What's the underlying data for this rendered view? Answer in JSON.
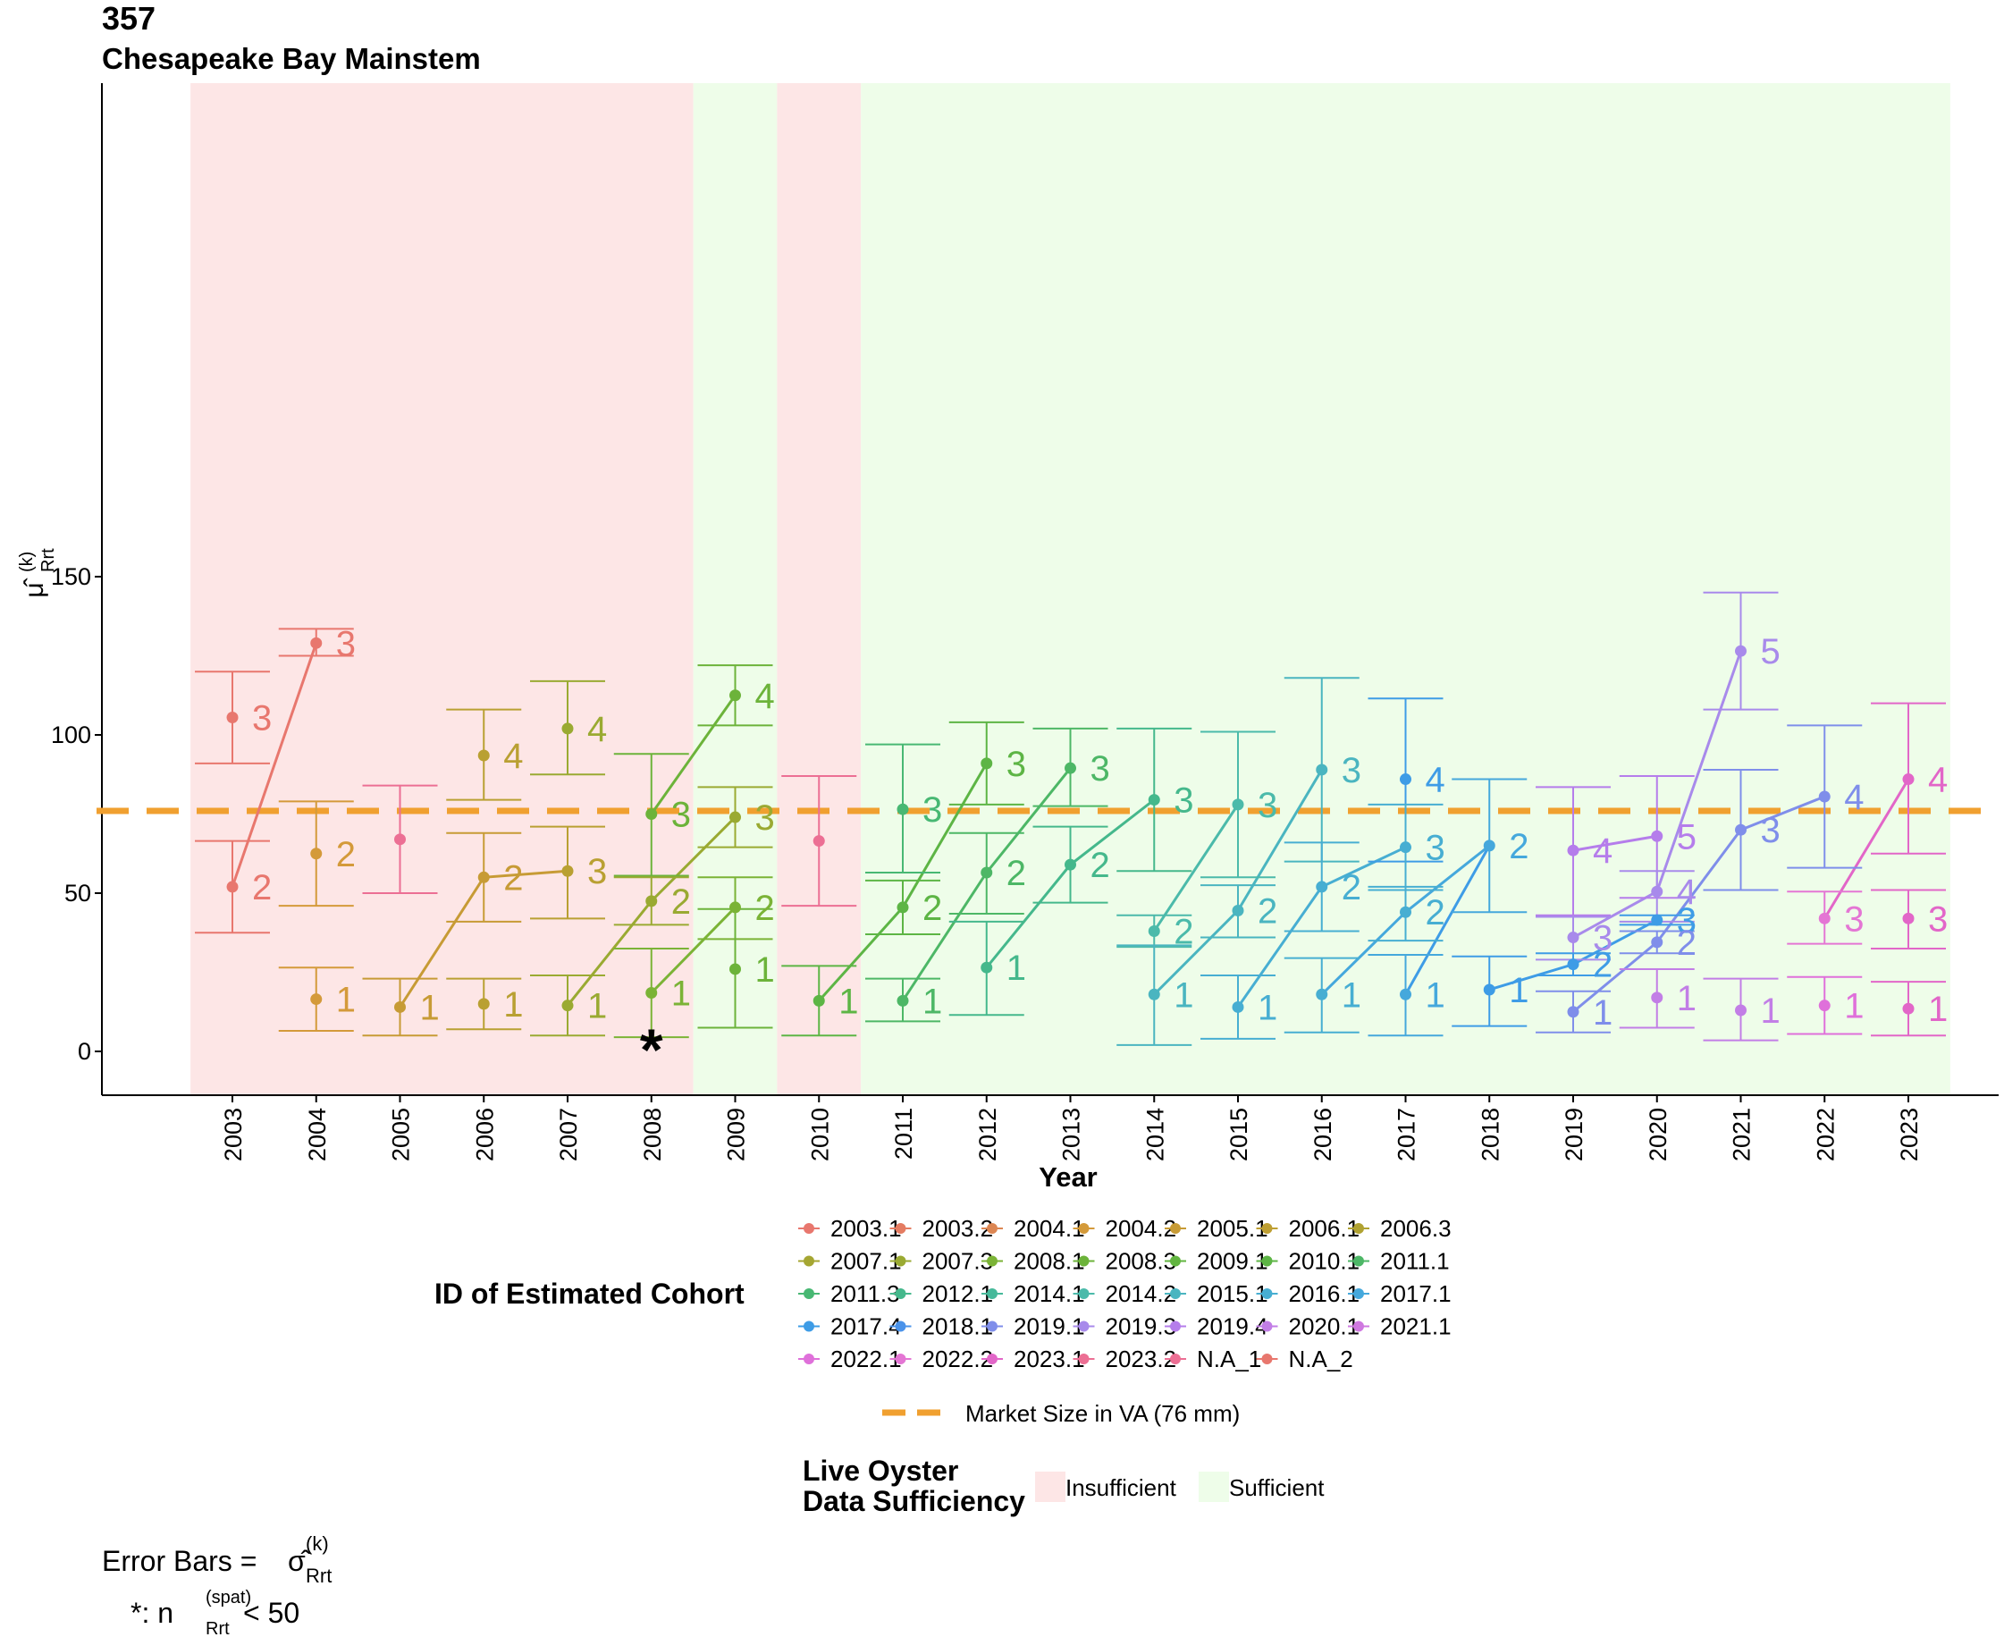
{
  "title": {
    "number": "357",
    "name": "Chesapeake Bay Mainstem"
  },
  "chart_data": {
    "type": "scatter",
    "xlabel": "Year",
    "ylabel_symbol": "μ̂",
    "ylabel_sup": "(k)",
    "ylabel_sub": "Rrt",
    "ylim": [
      -7,
      152
    ],
    "yticks": [
      0,
      50,
      100,
      150
    ],
    "years": [
      2003,
      2004,
      2005,
      2006,
      2007,
      2008,
      2009,
      2010,
      2011,
      2012,
      2013,
      2014,
      2015,
      2016,
      2017,
      2018,
      2019,
      2020,
      2021,
      2022,
      2023
    ],
    "grid": false,
    "market_size": {
      "value": 76,
      "color": "#F0A030",
      "label": "Market Size in VA (76 mm)"
    },
    "sufficiency": [
      {
        "from": 2002.5,
        "to": 2008.5,
        "status": "Insufficient"
      },
      {
        "from": 2008.5,
        "to": 2009.5,
        "status": "Sufficient"
      },
      {
        "from": 2009.5,
        "to": 2010.5,
        "status": "Insufficient"
      },
      {
        "from": 2010.5,
        "to": 2023.5,
        "status": "Sufficient"
      }
    ],
    "sufficiency_colors": {
      "Insufficient": "#FDE6E6",
      "Sufficient": "#EEFDE9"
    },
    "points": [
      {
        "year": 2003,
        "y": 105.5,
        "lo": 91,
        "hi": 120,
        "label": "3",
        "color": "#E8776E"
      },
      {
        "year": 2003,
        "y": 52,
        "lo": 37.5,
        "hi": 66.5,
        "label": "2",
        "color": "#E8776E"
      },
      {
        "year": 2004,
        "y": 129,
        "lo": 125,
        "hi": 133.5,
        "label": "3",
        "color": "#E8776E"
      },
      {
        "year": 2004,
        "y": 62.5,
        "lo": 46,
        "hi": 79,
        "label": "2",
        "color": "#D49A3A"
      },
      {
        "year": 2004,
        "y": 16.5,
        "lo": 6.5,
        "hi": 26.5,
        "label": "1",
        "color": "#D49A3A"
      },
      {
        "year": 2005,
        "y": 67,
        "lo": 50,
        "hi": 84,
        "label": "",
        "color": "#EC6F94"
      },
      {
        "year": 2005,
        "y": 14,
        "lo": 5,
        "hi": 23,
        "label": "1",
        "color": "#C79B35"
      },
      {
        "year": 2006,
        "y": 93.5,
        "lo": 79.5,
        "hi": 108,
        "label": "4",
        "color": "#B9A032"
      },
      {
        "year": 2006,
        "y": 55,
        "lo": 41,
        "hi": 69,
        "label": "2",
        "color": "#C79B35"
      },
      {
        "year": 2006,
        "y": 15,
        "lo": 7,
        "hi": 23,
        "label": "1",
        "color": "#B9A032"
      },
      {
        "year": 2007,
        "y": 102,
        "lo": 87.5,
        "hi": 117,
        "label": "4",
        "color": "#9AAA32"
      },
      {
        "year": 2007,
        "y": 57,
        "lo": 42,
        "hi": 71,
        "label": "3",
        "color": "#B9A032"
      },
      {
        "year": 2007,
        "y": 14.5,
        "lo": 5,
        "hi": 24,
        "label": "1",
        "color": "#9AAA32"
      },
      {
        "year": 2008,
        "y": 75,
        "lo": 55.5,
        "hi": 94,
        "label": "3",
        "color": "#6CB33A"
      },
      {
        "year": 2008,
        "y": 47.5,
        "lo": 40,
        "hi": 55,
        "label": "2",
        "color": "#9AAA32"
      },
      {
        "year": 2008,
        "y": 18.5,
        "lo": 4.5,
        "hi": 32.5,
        "label": "1",
        "color": "#7BB336"
      },
      {
        "year": 2009,
        "y": 112.5,
        "lo": 103,
        "hi": 122,
        "label": "4",
        "color": "#6CB33A"
      },
      {
        "year": 2009,
        "y": 74,
        "lo": 64.5,
        "hi": 83.5,
        "label": "3",
        "color": "#9AAA32"
      },
      {
        "year": 2009,
        "y": 45.5,
        "lo": 35.5,
        "hi": 55,
        "label": "2",
        "color": "#7BB336"
      },
      {
        "year": 2009,
        "y": 26,
        "lo": 7.5,
        "hi": 45,
        "label": "1",
        "color": "#6CB33A"
      },
      {
        "year": 2010,
        "y": 66.5,
        "lo": 46,
        "hi": 87,
        "label": "",
        "color": "#EC6F94"
      },
      {
        "year": 2010,
        "y": 16,
        "lo": 5,
        "hi": 27,
        "label": "1",
        "color": "#5DB545"
      },
      {
        "year": 2011,
        "y": 76.5,
        "lo": 56.5,
        "hi": 97,
        "label": "3",
        "color": "#48B873"
      },
      {
        "year": 2011,
        "y": 45.5,
        "lo": 37,
        "hi": 54,
        "label": "2",
        "color": "#5DB545"
      },
      {
        "year": 2011,
        "y": 16,
        "lo": 9.5,
        "hi": 23,
        "label": "1",
        "color": "#4DB766"
      },
      {
        "year": 2012,
        "y": 91,
        "lo": 78,
        "hi": 104,
        "label": "3",
        "color": "#5DB545"
      },
      {
        "year": 2012,
        "y": 56.5,
        "lo": 43.5,
        "hi": 69,
        "label": "2",
        "color": "#4DB766"
      },
      {
        "year": 2012,
        "y": 26.5,
        "lo": 11.5,
        "hi": 41,
        "label": "1",
        "color": "#45B88C"
      },
      {
        "year": 2013,
        "y": 89.5,
        "lo": 77.5,
        "hi": 102,
        "label": "3",
        "color": "#4DB766"
      },
      {
        "year": 2013,
        "y": 59,
        "lo": 47,
        "hi": 71,
        "label": "2",
        "color": "#45B88C"
      },
      {
        "year": 2014,
        "y": 79.5,
        "lo": 57,
        "hi": 102,
        "label": "3",
        "color": "#45B88C"
      },
      {
        "year": 2014,
        "y": 38,
        "lo": 33,
        "hi": 43,
        "label": "2",
        "color": "#4BBAAA"
      },
      {
        "year": 2014,
        "y": 18,
        "lo": 2,
        "hi": 33.5,
        "label": "1",
        "color": "#4AB5C0"
      },
      {
        "year": 2015,
        "y": 78,
        "lo": 55,
        "hi": 101,
        "label": "3",
        "color": "#4BBAAA"
      },
      {
        "year": 2015,
        "y": 44.5,
        "lo": 36,
        "hi": 52.5,
        "label": "2",
        "color": "#4AB5C0"
      },
      {
        "year": 2015,
        "y": 14,
        "lo": 4,
        "hi": 24,
        "label": "1",
        "color": "#47AED2"
      },
      {
        "year": 2016,
        "y": 89,
        "lo": 60,
        "hi": 118,
        "label": "3",
        "color": "#4AB5C0"
      },
      {
        "year": 2016,
        "y": 52,
        "lo": 38,
        "hi": 66,
        "label": "2",
        "color": "#47AED2"
      },
      {
        "year": 2016,
        "y": 18,
        "lo": 6,
        "hi": 29.5,
        "label": "1",
        "color": "#47AED2"
      },
      {
        "year": 2017,
        "y": 86,
        "lo": 60,
        "hi": 111.5,
        "label": "4",
        "color": "#3E9CE6"
      },
      {
        "year": 2017,
        "y": 64.5,
        "lo": 51,
        "hi": 78,
        "label": "3",
        "color": "#47AED2"
      },
      {
        "year": 2017,
        "y": 44,
        "lo": 35,
        "hi": 52,
        "label": "2",
        "color": "#47AED2"
      },
      {
        "year": 2017,
        "y": 18,
        "lo": 5,
        "hi": 30.5,
        "label": "1",
        "color": "#45A8DC"
      },
      {
        "year": 2018,
        "y": 65,
        "lo": 44,
        "hi": 86,
        "label": "2",
        "color": "#45A8DC"
      },
      {
        "year": 2018,
        "y": 19.5,
        "lo": 8,
        "hi": 30,
        "label": "1",
        "color": "#3E9CE6"
      },
      {
        "year": 2019,
        "y": 63.5,
        "lo": 43,
        "hi": 83.5,
        "label": "4",
        "color": "#B57DEB"
      },
      {
        "year": 2019,
        "y": 36,
        "lo": 29,
        "hi": 42.5,
        "label": "3",
        "color": "#A88AEB"
      },
      {
        "year": 2019,
        "y": 27.5,
        "lo": 24,
        "hi": 31,
        "label": "2",
        "color": "#3E9CE6"
      },
      {
        "year": 2019,
        "y": 12.5,
        "lo": 6,
        "hi": 19,
        "label": "1",
        "color": "#7F8EEA"
      },
      {
        "year": 2020,
        "y": 68,
        "lo": 48.5,
        "hi": 87,
        "label": "5",
        "color": "#B57DEB"
      },
      {
        "year": 2020,
        "y": 50.5,
        "lo": 41,
        "hi": 57,
        "label": "4",
        "color": "#A88AEB"
      },
      {
        "year": 2020,
        "y": 41.5,
        "lo": 40,
        "hi": 43,
        "label": "3",
        "color": "#3E9CE6"
      },
      {
        "year": 2020,
        "y": 34.5,
        "lo": 31,
        "hi": 38,
        "label": "2",
        "color": "#7F8EEA"
      },
      {
        "year": 2020,
        "y": 17,
        "lo": 7.5,
        "hi": 26,
        "label": "1",
        "color": "#C27EE6"
      },
      {
        "year": 2021,
        "y": 126.5,
        "lo": 108,
        "hi": 145,
        "label": "5",
        "color": "#A88AEB"
      },
      {
        "year": 2021,
        "y": 70,
        "lo": 51,
        "hi": 89,
        "label": "3",
        "color": "#7F8EEA"
      },
      {
        "year": 2021,
        "y": 13,
        "lo": 3.5,
        "hi": 23,
        "label": "1",
        "color": "#C27EE6"
      },
      {
        "year": 2022,
        "y": 80.5,
        "lo": 58,
        "hi": 103,
        "label": "4",
        "color": "#7F8EEA"
      },
      {
        "year": 2022,
        "y": 42,
        "lo": 34,
        "hi": 50.5,
        "label": "3",
        "color": "#E476D4"
      },
      {
        "year": 2022,
        "y": 14.5,
        "lo": 5.5,
        "hi": 23.5,
        "label": "1",
        "color": "#DF70DA"
      },
      {
        "year": 2023,
        "y": 86,
        "lo": 62.5,
        "hi": 110,
        "label": "4",
        "color": "#E266C8"
      },
      {
        "year": 2023,
        "y": 42,
        "lo": 32.5,
        "hi": 51,
        "label": "3",
        "color": "#E266C8"
      },
      {
        "year": 2023,
        "y": 13.5,
        "lo": 5,
        "hi": 22,
        "label": "1",
        "color": "#E266C8"
      }
    ],
    "lines": [
      {
        "color": "#E8776E",
        "pts": [
          [
            2003,
            52
          ],
          [
            2004,
            129
          ]
        ]
      },
      {
        "color": "#C79B35",
        "pts": [
          [
            2005,
            14
          ],
          [
            2006,
            55
          ],
          [
            2007,
            57
          ]
        ]
      },
      {
        "color": "#9AAA32",
        "pts": [
          [
            2007,
            14.5
          ],
          [
            2008,
            47.5
          ],
          [
            2009,
            74
          ]
        ]
      },
      {
        "color": "#6CB33A",
        "pts": [
          [
            2008,
            75
          ],
          [
            2009,
            112.5
          ]
        ]
      },
      {
        "color": "#7BB336",
        "pts": [
          [
            2008,
            18.5
          ],
          [
            2009,
            45.5
          ]
        ]
      },
      {
        "color": "#5DB545",
        "pts": [
          [
            2010,
            16
          ],
          [
            2011,
            45.5
          ],
          [
            2012,
            91
          ]
        ]
      },
      {
        "color": "#4DB766",
        "pts": [
          [
            2011,
            16
          ],
          [
            2012,
            56.5
          ],
          [
            2013,
            89.5
          ]
        ]
      },
      {
        "color": "#45B88C",
        "pts": [
          [
            2012,
            26.5
          ],
          [
            2013,
            59
          ],
          [
            2014,
            79.5
          ]
        ]
      },
      {
        "color": "#4BBAAA",
        "pts": [
          [
            2014,
            38
          ],
          [
            2015,
            78
          ]
        ]
      },
      {
        "color": "#4AB5C0",
        "pts": [
          [
            2014,
            18
          ],
          [
            2015,
            44.5
          ],
          [
            2016,
            89
          ]
        ]
      },
      {
        "color": "#47AED2",
        "pts": [
          [
            2015,
            14
          ],
          [
            2016,
            52
          ],
          [
            2017,
            64.5
          ]
        ]
      },
      {
        "color": "#45A8DC",
        "pts": [
          [
            2016,
            18
          ],
          [
            2017,
            44
          ],
          [
            2018,
            65
          ]
        ]
      },
      {
        "color": "#3E9CE6",
        "pts": [
          [
            2017,
            18
          ],
          [
            2018,
            65
          ]
        ]
      },
      {
        "color": "#3E9CE6",
        "pts": [
          [
            2018,
            19.5
          ],
          [
            2019,
            27.5
          ],
          [
            2020,
            41.5
          ]
        ]
      },
      {
        "color": "#7F8EEA",
        "pts": [
          [
            2019,
            12.5
          ],
          [
            2020,
            34.5
          ],
          [
            2021,
            70
          ],
          [
            2022,
            80.5
          ]
        ]
      },
      {
        "color": "#A88AEB",
        "pts": [
          [
            2019,
            36
          ],
          [
            2020,
            50.5
          ],
          [
            2021,
            126.5
          ]
        ]
      },
      {
        "color": "#B57DEB",
        "pts": [
          [
            2019,
            63.5
          ],
          [
            2020,
            68
          ]
        ]
      },
      {
        "color": "#E266C8",
        "pts": [
          [
            2022,
            42
          ],
          [
            2023,
            86
          ]
        ]
      }
    ],
    "annotations": [
      {
        "text": "*",
        "year": 2008,
        "y": 2
      }
    ]
  },
  "legend": {
    "cohort_title": "ID of Estimated Cohort",
    "cohort_items": [
      {
        "label": "2003.1",
        "color": "#E8776E"
      },
      {
        "label": "2003.2",
        "color": "#E47C62"
      },
      {
        "label": "2004.1",
        "color": "#DC8653"
      },
      {
        "label": "2004.2",
        "color": "#D49A3A"
      },
      {
        "label": "2005.1",
        "color": "#C79B35"
      },
      {
        "label": "2006.1",
        "color": "#BE9F33"
      },
      {
        "label": "2006.3",
        "color": "#B0A232"
      },
      {
        "label": "2007.1",
        "color": "#A5A632"
      },
      {
        "label": "2007.3",
        "color": "#9AAA32"
      },
      {
        "label": "2008.1",
        "color": "#7BB336"
      },
      {
        "label": "2008.3",
        "color": "#6CB33A"
      },
      {
        "label": "2009.1",
        "color": "#62B540"
      },
      {
        "label": "2010.1",
        "color": "#5DB545"
      },
      {
        "label": "2011.1",
        "color": "#4DB766"
      },
      {
        "label": "2011.3",
        "color": "#48B873"
      },
      {
        "label": "2012.1",
        "color": "#45B88C"
      },
      {
        "label": "2014.1",
        "color": "#46B99A"
      },
      {
        "label": "2014.2",
        "color": "#4BBAAA"
      },
      {
        "label": "2015.1",
        "color": "#4AB5C0"
      },
      {
        "label": "2016.1",
        "color": "#47AED2"
      },
      {
        "label": "2017.1",
        "color": "#45A8DC"
      },
      {
        "label": "2017.4",
        "color": "#3E9CE6"
      },
      {
        "label": "2018.1",
        "color": "#4A93EA"
      },
      {
        "label": "2019.1",
        "color": "#7F8EEA"
      },
      {
        "label": "2019.3",
        "color": "#A88AEB"
      },
      {
        "label": "2019.4",
        "color": "#B57DEB"
      },
      {
        "label": "2020.1",
        "color": "#C27EE6"
      },
      {
        "label": "2021.1",
        "color": "#CF78E0"
      },
      {
        "label": "2022.1",
        "color": "#DF70DA"
      },
      {
        "label": "2022.2",
        "color": "#E476D4"
      },
      {
        "label": "2023.1",
        "color": "#E266C8"
      },
      {
        "label": "2023.2",
        "color": "#EC6F94"
      },
      {
        "label": "N.A_1",
        "color": "#EC6F94"
      },
      {
        "label": "N.A_2",
        "color": "#E8776E"
      }
    ],
    "market_label": "Market Size in VA (76 mm)",
    "sufficiency_title_line1": "Live Oyster",
    "sufficiency_title_line2": "Data Sufficiency",
    "sufficiency_items": [
      {
        "label": "Insufficient",
        "color": "#FDE6E6"
      },
      {
        "label": "Sufficient",
        "color": "#EEFDE9"
      }
    ]
  },
  "footnotes": {
    "error_bars_prefix": "Error Bars = ",
    "error_bars_symbol": "σ̂",
    "error_bars_sup": "(k)",
    "error_bars_sub": "Rrt",
    "star_prefix": "*:  n",
    "star_sup": "(spat)",
    "star_sub": "Rrt",
    "star_suffix": " < 50"
  }
}
